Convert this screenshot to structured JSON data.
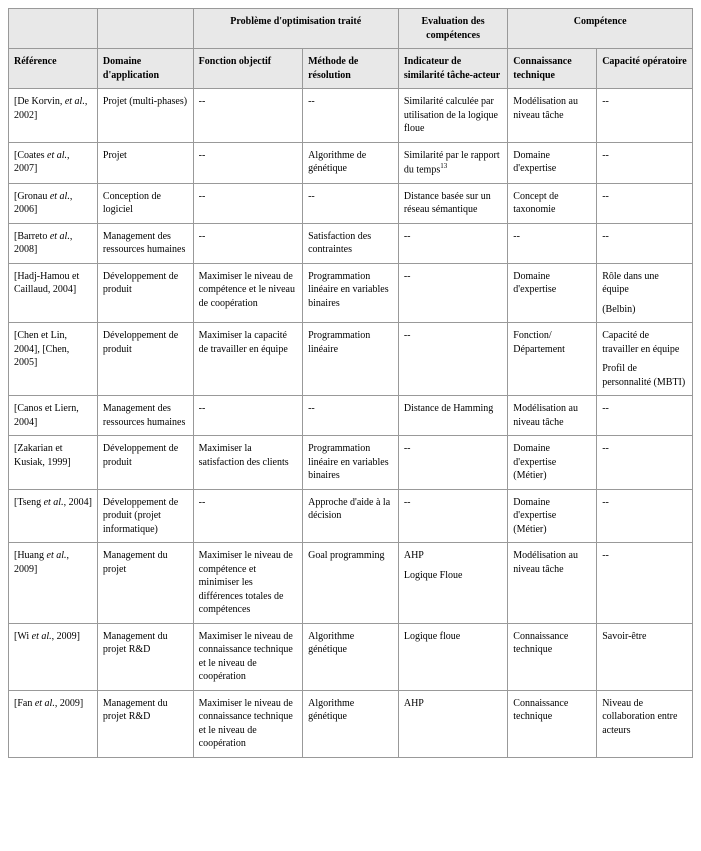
{
  "headers": {
    "group_opt": "Problème d'optimisation traité",
    "group_eval": "Evaluation des compétences",
    "group_comp": "Compétence",
    "ref": "Référence",
    "domaine": "Domaine d'application",
    "fonction": "Fonction objectif",
    "methode": "Méthode de résolution",
    "indicateur": "Indicateur de similarité tâche-acteur",
    "connaissance": "Connaissance technique",
    "capacite": "Capacité opératoire"
  },
  "rows": [
    {
      "ref": "[De Korvin, et al., 2002]",
      "ref_italic_part": "et al.",
      "domaine": "Projet (multi-phases)",
      "fonction": "--",
      "methode": "--",
      "indicateur": "Similarité calculée par utilisation de la logique floue",
      "connaissance": "Modélisation au niveau tâche",
      "capacite": "--"
    },
    {
      "ref": "[Coates et al., 2007]",
      "domaine": "Projet",
      "fonction": "--",
      "methode": "Algorithme de génétique",
      "indicateur": "Similarité par le rapport du temps",
      "indicateur_sup": "13",
      "connaissance": "Domaine d'expertise",
      "capacite": "--"
    },
    {
      "ref": "[Gronau et al., 2006]",
      "domaine": "Conception de logiciel",
      "fonction": "--",
      "methode": "--",
      "indicateur": "Distance basée sur un réseau sémantique",
      "connaissance": "Concept de taxonomie",
      "capacite": "--"
    },
    {
      "ref": "[Barreto et al., 2008]",
      "domaine": "Management des ressources humaines",
      "fonction": "--",
      "methode": "Satisfaction des contraintes",
      "indicateur": "--",
      "connaissance": "--",
      "capacite": "--"
    },
    {
      "ref": "[Hadj-Hamou et Caillaud, 2004]",
      "domaine": "Développement de produit",
      "fonction": "Maximiser le niveau de compétence et le niveau de coopération",
      "methode": "Programmation linéaire en variables binaires",
      "indicateur": "--",
      "connaissance": "Domaine d'expertise",
      "capacite_multi": [
        "Rôle dans une équipe",
        "(Belbin)"
      ]
    },
    {
      "ref": "[Chen et Lin, 2004], [Chen, 2005]",
      "domaine": "Développement de produit",
      "fonction": "Maximiser la capacité de travailler en équipe",
      "methode": "Programmation linéaire",
      "indicateur": "--",
      "connaissance": "Fonction/ Département",
      "capacite_multi": [
        "Capacité de travailler en équipe",
        "Profil de personnalité (MBTI)"
      ]
    },
    {
      "ref": "[Canos et Liern, 2004]",
      "domaine": "Management des ressources humaines",
      "fonction": "--",
      "methode": "--",
      "indicateur": "Distance de Hamming",
      "connaissance": "Modélisation au niveau tâche",
      "capacite": "--"
    },
    {
      "ref": "[Zakarian et Kusiak, 1999]",
      "domaine": "Développement de produit",
      "fonction": "Maximiser la satisfaction des clients",
      "methode": "Programmation linéaire en variables binaires",
      "indicateur": "--",
      "connaissance": "Domaine d'expertise (Métier)",
      "capacite": "--"
    },
    {
      "ref": "[Tseng et al., 2004]",
      "domaine": "Développement de produit (projet informatique)",
      "fonction": "--",
      "methode": "Approche d'aide à la décision",
      "indicateur": "--",
      "connaissance": "Domaine d'expertise (Métier)",
      "capacite": "--"
    },
    {
      "ref": "[Huang et al., 2009]",
      "domaine": "Management  du projet",
      "fonction": "Maximiser le niveau de compétence et minimiser les différences totales de compétences",
      "methode": "Goal programming",
      "indicateur_multi": [
        "AHP",
        "Logique Floue"
      ],
      "connaissance": "Modélisation au niveau tâche",
      "capacite": "--"
    },
    {
      "ref": "[Wi et al., 2009]",
      "domaine": "Management  du projet R&D",
      "fonction": "Maximiser le niveau de connaissance technique et le niveau de coopération",
      "methode": "Algorithme génétique",
      "indicateur": "Logique floue",
      "connaissance": "Connaissance technique",
      "capacite": "Savoir-être"
    },
    {
      "ref": "[Fan et al., 2009]",
      "domaine": "Management  du projet R&D",
      "fonction": "Maximiser le niveau de connaissance technique et le niveau de coopération",
      "methode": "Algorithme génétique",
      "indicateur": "AHP",
      "connaissance": "Connaissance technique",
      "capacite": "Niveau de collaboration entre acteurs"
    }
  ],
  "col_widths": [
    "13%",
    "14%",
    "16%",
    "14%",
    "16%",
    "13%",
    "14%"
  ]
}
